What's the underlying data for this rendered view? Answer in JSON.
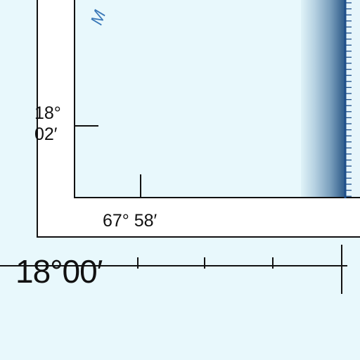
{
  "labels": {
    "lat_deg": "18°",
    "lat_min": "02′",
    "lon_inner": "67° 58′",
    "lat_outer": "18°00′",
    "water_fragment": "M"
  },
  "colors": {
    "water": "#e8f8fc",
    "collar": "#ffffff",
    "neatline": "#111111",
    "tick_blue": "#1f4f8a",
    "water_text": "#3a78b8"
  }
}
